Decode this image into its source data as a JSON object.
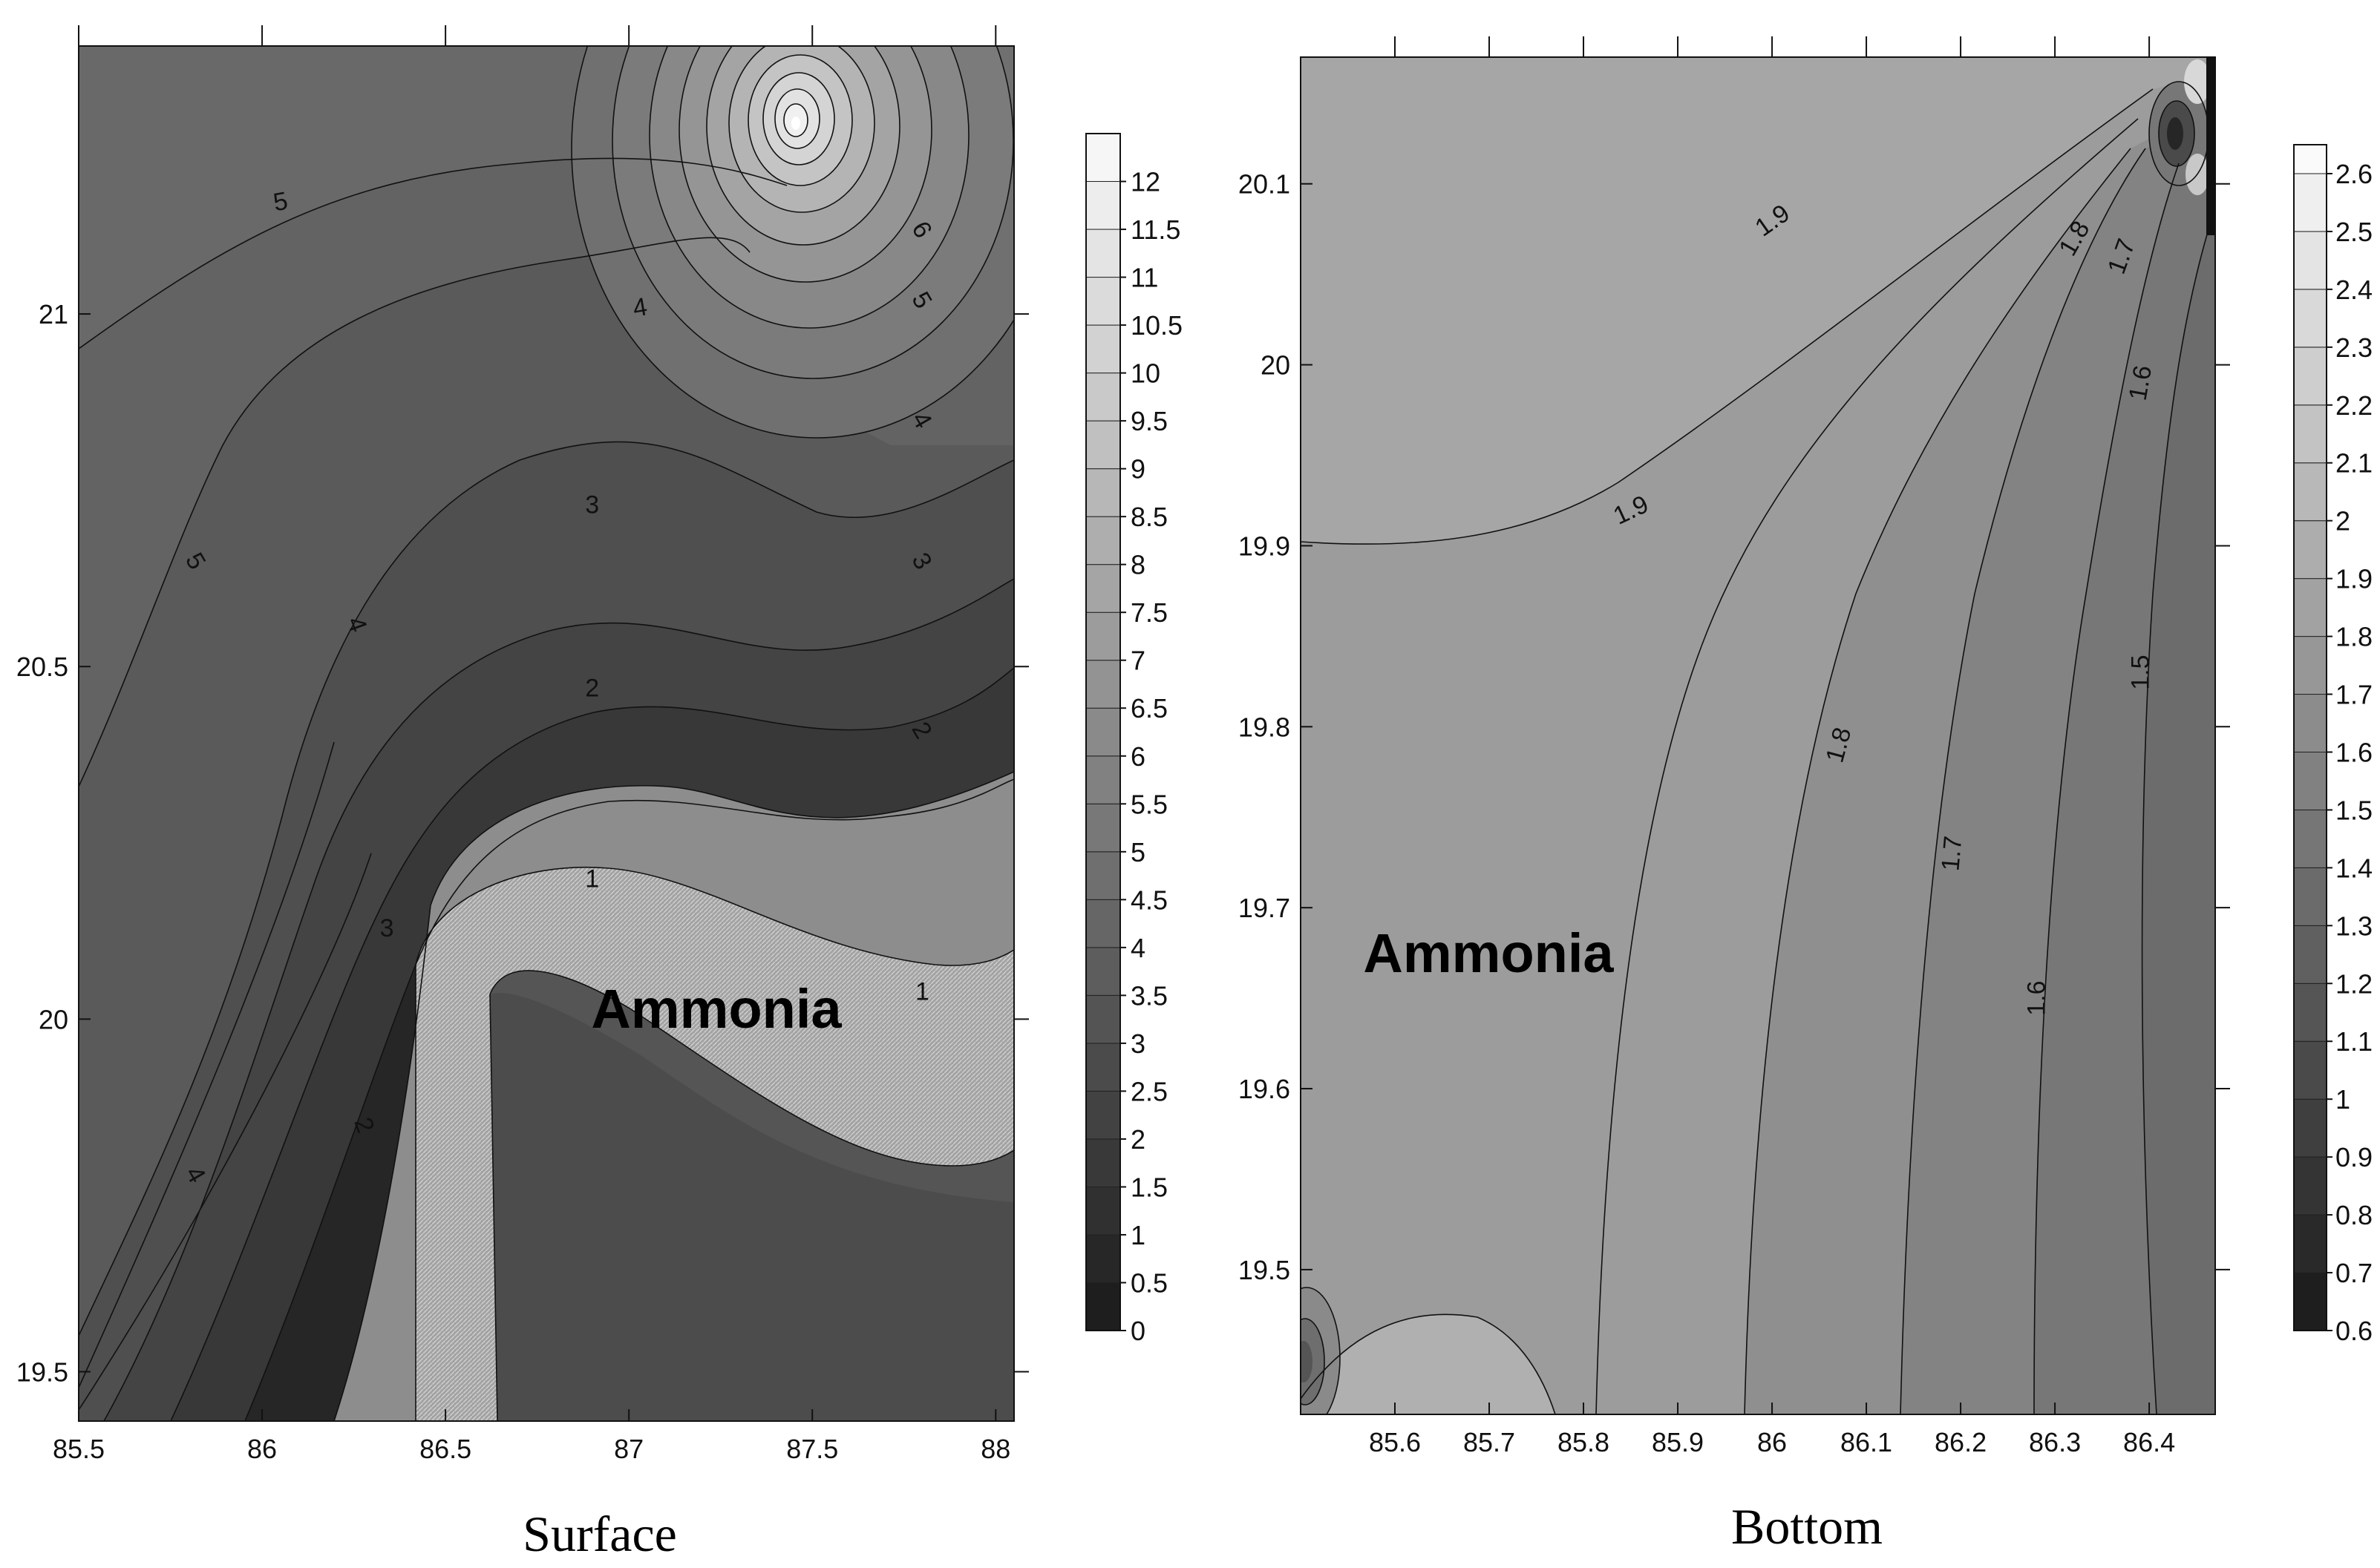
{
  "chart_data": [
    {
      "type": "contour",
      "panel": "surface",
      "caption": "Surface",
      "annotation": "Ammonia",
      "x_ticks": [
        "85.5",
        "86",
        "86.5",
        "87",
        "87.5",
        "88"
      ],
      "y_ticks": [
        "21",
        "20.5",
        "20",
        "19.5"
      ],
      "xlim": [
        85.5,
        88.05
      ],
      "ylim": [
        19.43,
        21.38
      ],
      "colorbar": {
        "ticks": [
          "12",
          "11.5",
          "11",
          "10.5",
          "10",
          "9.5",
          "9",
          "8.5",
          "8",
          "7.5",
          "7",
          "6.5",
          "6",
          "5.5",
          "5",
          "4.5",
          "4",
          "3.5",
          "3",
          "2.5",
          "2",
          "1.5",
          "1",
          "0.5",
          "0"
        ],
        "min": 0,
        "max": 12.5
      },
      "contour_labels": [
        {
          "text": "5",
          "x": 86.05,
          "y": 21.16,
          "rot": -10
        },
        {
          "text": "6",
          "x": 87.8,
          "y": 21.12,
          "rot": 60
        },
        {
          "text": "4",
          "x": 87.03,
          "y": 21.01,
          "rot": -10
        },
        {
          "text": "5",
          "x": 87.8,
          "y": 21.02,
          "rot": 60
        },
        {
          "text": "4",
          "x": 87.8,
          "y": 20.85,
          "rot": 60
        },
        {
          "text": "3",
          "x": 86.9,
          "y": 20.73,
          "rot": 0
        },
        {
          "text": "5",
          "x": 85.82,
          "y": 20.65,
          "rot": 60
        },
        {
          "text": "3",
          "x": 87.8,
          "y": 20.65,
          "rot": 60
        },
        {
          "text": "4",
          "x": 86.26,
          "y": 20.56,
          "rot": 70
        },
        {
          "text": "2",
          "x": 86.9,
          "y": 20.47,
          "rot": 0
        },
        {
          "text": "2",
          "x": 87.8,
          "y": 20.41,
          "rot": 60
        },
        {
          "text": "1",
          "x": 86.9,
          "y": 20.2,
          "rot": 0
        },
        {
          "text": "3",
          "x": 86.34,
          "y": 20.13,
          "rot": 0
        },
        {
          "text": "1",
          "x": 87.8,
          "y": 20.04,
          "rot": 0
        },
        {
          "text": "2",
          "x": 86.28,
          "y": 19.85,
          "rot": 70
        },
        {
          "text": "4",
          "x": 85.82,
          "y": 19.78,
          "rot": 60
        }
      ]
    },
    {
      "type": "contour",
      "panel": "bottom",
      "caption": "Bottom",
      "annotation": "Ammonia",
      "x_ticks": [
        "85.6",
        "85.7",
        "85.8",
        "85.9",
        "86",
        "86.1",
        "86.2",
        "86.3",
        "86.4"
      ],
      "y_ticks": [
        "20.1",
        "20",
        "19.9",
        "19.8",
        "19.7",
        "19.6",
        "19.5"
      ],
      "xlim": [
        85.5,
        86.47
      ],
      "ylim": [
        19.42,
        20.17
      ],
      "colorbar": {
        "ticks": [
          "2.6",
          "2.5",
          "2.4",
          "2.3",
          "2.2",
          "2.1",
          "2",
          "1.9",
          "1.8",
          "1.7",
          "1.6",
          "1.5",
          "1.4",
          "1.3",
          "1.2",
          "1.1",
          "1",
          "0.9",
          "0.8",
          "0.7",
          "0.6"
        ],
        "min": 0.6,
        "max": 2.65
      },
      "contour_labels": [
        {
          "text": "1.9",
          "x": 86.0,
          "y": 20.08,
          "rot": -35
        },
        {
          "text": "1.8",
          "x": 86.32,
          "y": 20.07,
          "rot": -60
        },
        {
          "text": "1.7",
          "x": 86.37,
          "y": 20.06,
          "rot": -70
        },
        {
          "text": "1.6",
          "x": 86.39,
          "y": 19.99,
          "rot": -80
        },
        {
          "text": "1.9",
          "x": 85.85,
          "y": 19.92,
          "rot": -25
        },
        {
          "text": "1.5",
          "x": 86.39,
          "y": 19.83,
          "rot": -90
        },
        {
          "text": "1.8",
          "x": 86.07,
          "y": 19.79,
          "rot": -75
        },
        {
          "text": "1.7",
          "x": 86.19,
          "y": 19.73,
          "rot": -85
        },
        {
          "text": "1.6",
          "x": 86.28,
          "y": 19.65,
          "rot": -90
        }
      ]
    }
  ]
}
